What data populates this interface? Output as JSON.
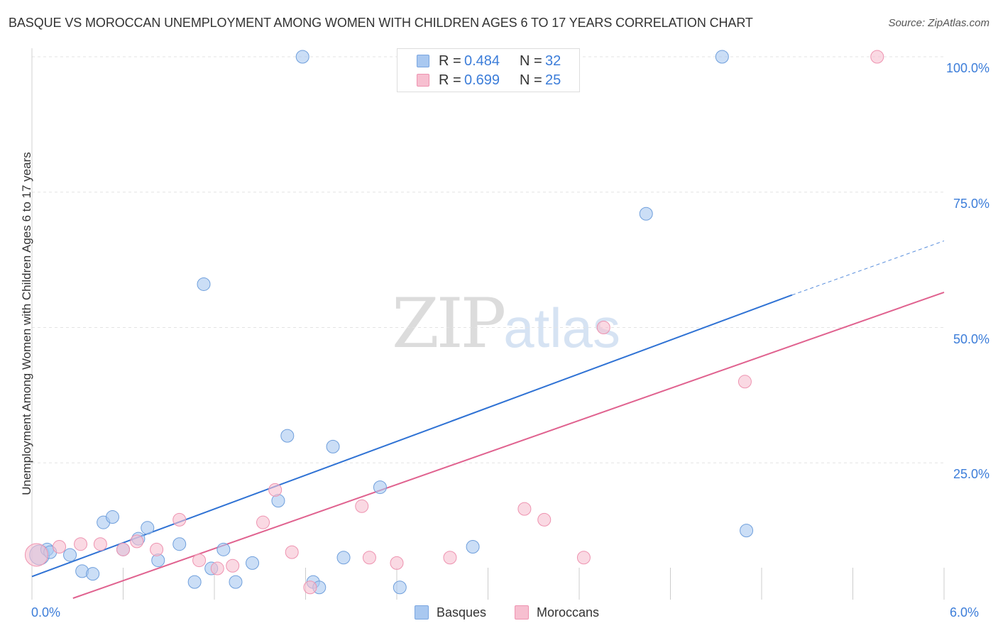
{
  "title": "BASQUE VS MOROCCAN UNEMPLOYMENT AMONG WOMEN WITH CHILDREN AGES 6 TO 17 YEARS CORRELATION CHART",
  "source": "Source: ZipAtlas.com",
  "watermark": {
    "zip": "ZIP",
    "atlas": "atlas"
  },
  "legend": {
    "rows": [
      {
        "r_label": "R =",
        "r_value": "0.484",
        "n_label": "N =",
        "n_value": "32",
        "color": "#a9c8f0",
        "border": "#7aa6e0"
      },
      {
        "r_label": "R =",
        "r_value": "0.699",
        "n_label": "N =",
        "n_value": "25",
        "color": "#f7bfd0",
        "border": "#ee93b0"
      }
    ]
  },
  "bottom_legend": [
    {
      "label": "Basques",
      "color": "#a9c8f0",
      "border": "#7aa6e0"
    },
    {
      "label": "Moroccans",
      "color": "#f7bfd0",
      "border": "#ee93b0"
    }
  ],
  "chart_data": {
    "type": "scatter",
    "title": "BASQUE VS MOROCCAN UNEMPLOYMENT AMONG WOMEN WITH CHILDREN AGES 6 TO 17 YEARS CORRELATION CHART",
    "xlabel": "",
    "ylabel": "Unemployment Among Women with Children Ages 6 to 17 years",
    "xlim": [
      0,
      6
    ],
    "ylim": [
      0,
      102
    ],
    "x_tick_labels": [
      {
        "value": 0,
        "label": "0.0%"
      },
      {
        "value": 6,
        "label": "6.0%"
      }
    ],
    "y_tick_labels": [
      {
        "value": 100,
        "label": "100.0%"
      },
      {
        "value": 75,
        "label": "75.0%"
      },
      {
        "value": 50,
        "label": "50.0%"
      },
      {
        "value": 25,
        "label": "25.0%"
      }
    ],
    "grid": true,
    "series": [
      {
        "name": "Basques",
        "color": "#a9c8f0",
        "stroke": "#6f9fdc",
        "line_color": "#2f72d4",
        "trend": {
          "x0": 0,
          "y0": 4,
          "x1": 5.0,
          "y1": 56,
          "dash_to_x": 6.0,
          "dash_to_y": 66
        },
        "points": [
          {
            "x": 0.05,
            "y": 8,
            "size": 14
          },
          {
            "x": 0.1,
            "y": 9,
            "size": 9
          },
          {
            "x": 0.25,
            "y": 8,
            "size": 9
          },
          {
            "x": 0.33,
            "y": 5,
            "size": 9
          },
          {
            "x": 0.4,
            "y": 4.5,
            "size": 9
          },
          {
            "x": 0.47,
            "y": 14,
            "size": 9
          },
          {
            "x": 0.53,
            "y": 15,
            "size": 9
          },
          {
            "x": 0.6,
            "y": 9,
            "size": 9
          },
          {
            "x": 0.7,
            "y": 11,
            "size": 9
          },
          {
            "x": 0.76,
            "y": 13,
            "size": 9
          },
          {
            "x": 0.83,
            "y": 7,
            "size": 9
          },
          {
            "x": 0.97,
            "y": 10,
            "size": 9
          },
          {
            "x": 1.07,
            "y": 3,
            "size": 9
          },
          {
            "x": 1.13,
            "y": 58,
            "size": 9
          },
          {
            "x": 1.18,
            "y": 5.5,
            "size": 9
          },
          {
            "x": 1.26,
            "y": 9,
            "size": 9
          },
          {
            "x": 1.34,
            "y": 3,
            "size": 9
          },
          {
            "x": 1.45,
            "y": 6.5,
            "size": 9
          },
          {
            "x": 1.62,
            "y": 18,
            "size": 9
          },
          {
            "x": 1.68,
            "y": 30,
            "size": 9
          },
          {
            "x": 1.78,
            "y": 100,
            "size": 9
          },
          {
            "x": 1.85,
            "y": 3,
            "size": 9
          },
          {
            "x": 1.89,
            "y": 2,
            "size": 9
          },
          {
            "x": 1.98,
            "y": 28,
            "size": 9
          },
          {
            "x": 2.05,
            "y": 7.5,
            "size": 9
          },
          {
            "x": 2.29,
            "y": 20.5,
            "size": 9
          },
          {
            "x": 2.42,
            "y": 2,
            "size": 9
          },
          {
            "x": 2.9,
            "y": 9.5,
            "size": 9
          },
          {
            "x": 4.04,
            "y": 71,
            "size": 9
          },
          {
            "x": 4.54,
            "y": 100,
            "size": 9
          },
          {
            "x": 4.7,
            "y": 12.5,
            "size": 9
          },
          {
            "x": 0.12,
            "y": 8.5,
            "size": 9
          }
        ]
      },
      {
        "name": "Moroccans",
        "color": "#f7bfd0",
        "stroke": "#ee93b0",
        "line_color": "#e0628f",
        "trend": {
          "x0": 0.27,
          "y0": 0,
          "x1": 6.0,
          "y1": 56.5
        },
        "points": [
          {
            "x": 0.03,
            "y": 8,
            "size": 16
          },
          {
            "x": 0.18,
            "y": 9.5,
            "size": 9
          },
          {
            "x": 0.32,
            "y": 10,
            "size": 9
          },
          {
            "x": 0.45,
            "y": 10,
            "size": 9
          },
          {
            "x": 0.6,
            "y": 9,
            "size": 9
          },
          {
            "x": 0.69,
            "y": 10.5,
            "size": 9
          },
          {
            "x": 0.82,
            "y": 9,
            "size": 9
          },
          {
            "x": 0.97,
            "y": 14.5,
            "size": 9
          },
          {
            "x": 1.1,
            "y": 7,
            "size": 9
          },
          {
            "x": 1.22,
            "y": 5.5,
            "size": 9
          },
          {
            "x": 1.32,
            "y": 6,
            "size": 9
          },
          {
            "x": 1.52,
            "y": 14,
            "size": 9
          },
          {
            "x": 1.6,
            "y": 20,
            "size": 9
          },
          {
            "x": 1.71,
            "y": 8.5,
            "size": 9
          },
          {
            "x": 1.83,
            "y": 2,
            "size": 9
          },
          {
            "x": 2.17,
            "y": 17,
            "size": 9
          },
          {
            "x": 2.22,
            "y": 7.5,
            "size": 9
          },
          {
            "x": 2.4,
            "y": 6.5,
            "size": 9
          },
          {
            "x": 2.75,
            "y": 7.5,
            "size": 9
          },
          {
            "x": 3.24,
            "y": 16.5,
            "size": 9
          },
          {
            "x": 3.37,
            "y": 14.5,
            "size": 9
          },
          {
            "x": 3.63,
            "y": 7.5,
            "size": 9
          },
          {
            "x": 3.76,
            "y": 50,
            "size": 9
          },
          {
            "x": 4.69,
            "y": 40,
            "size": 9
          },
          {
            "x": 5.56,
            "y": 100,
            "size": 9
          }
        ]
      }
    ]
  }
}
